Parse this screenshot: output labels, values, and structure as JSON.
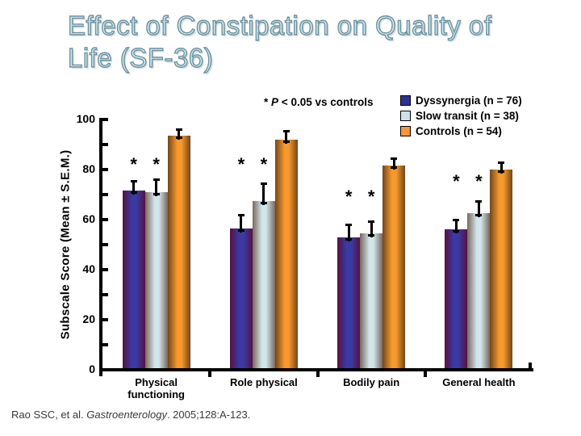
{
  "slide": {
    "title_line1": "Effect of Constipation on Quality of",
    "title_line2": "Life (SF-36)",
    "title_fill": "#d3e8ee",
    "title_outline": "#6e93a0",
    "citation": {
      "prefix": "Rao SSC, et al. ",
      "journal": "Gastroenterology",
      "suffix": ". 2005;128:A-123."
    }
  },
  "chart_data": {
    "type": "bar",
    "title": "",
    "xlabel": "",
    "ylabel": "Subscale Score (Mean ± S.E.M.)",
    "ylim": [
      0,
      100
    ],
    "y_major_ticks": [
      0,
      20,
      40,
      60,
      80,
      100
    ],
    "y_minor_ticks": [
      10,
      30,
      50,
      70,
      90
    ],
    "grid": false,
    "legend_position": "top-right",
    "error_bars": true,
    "categories": [
      "Physical functioning",
      "Role physical",
      "Bodily pain",
      "General health"
    ],
    "series": [
      {
        "name": "Dyssynergia",
        "legend_label": "Dyssynergia (n = 76)",
        "n": 76,
        "values": [
          71.5,
          56.5,
          53,
          56
        ],
        "errors": [
          4,
          5.5,
          5,
          4
        ],
        "color": "#3A3AA6",
        "edge_color": "#571140",
        "legend_color": "#2E3192"
      },
      {
        "name": "Slow transit",
        "legend_label": "Slow transit (n = 38)",
        "n": 38,
        "values": [
          71,
          67.5,
          54.5,
          62.5
        ],
        "errors": [
          5,
          7,
          5,
          5
        ],
        "color": "#D2E5EA",
        "edge_color": "#7A685F",
        "legend_color": "#CCE2E8"
      },
      {
        "name": "Controls",
        "legend_label": "Controls (n = 54)",
        "n": 54,
        "values": [
          93.5,
          92,
          81.5,
          80
        ],
        "errors": [
          2.5,
          3.5,
          3,
          3
        ],
        "color": "#F8992E",
        "edge_color": "#71471A",
        "legend_color": "#F6953A"
      }
    ],
    "annotation": {
      "star": "*",
      "p_label": "P",
      "rest": "< 0.05 vs controls"
    },
    "significance": {
      "starred_series_indexes": [
        0,
        1
      ],
      "star_row_heights": [
        83,
        83,
        70,
        76
      ]
    }
  }
}
